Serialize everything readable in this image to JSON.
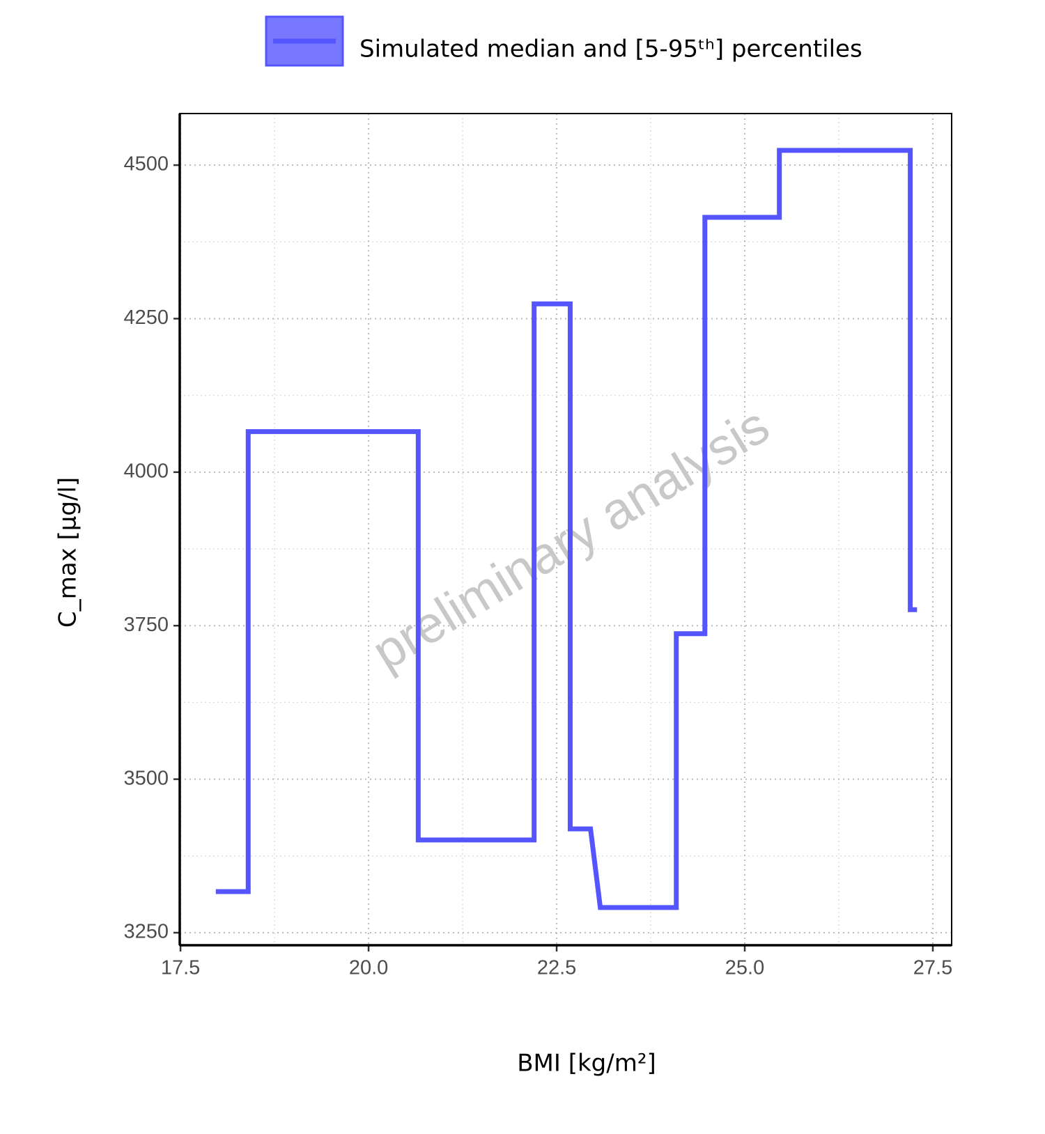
{
  "chart_data": {
    "type": "line",
    "x": [
      17.97,
      18.4,
      18.4,
      20.66,
      20.66,
      22.2,
      22.2,
      22.68,
      22.68,
      22.95,
      23.08,
      24.09,
      24.09,
      24.47,
      24.47,
      25.46,
      25.46,
      27.2,
      27.2,
      27.29
    ],
    "series": [
      {
        "name": "Simulated median and [5-95ᵗʰ] percentiles",
        "color": "#5555ff",
        "values": [
          3317,
          3317,
          4066,
          4066,
          3401,
          3401,
          4274,
          4274,
          3419,
          3419,
          3291,
          3291,
          3737,
          3737,
          4415,
          4415,
          4524,
          4524,
          3776,
          3776
        ]
      }
    ],
    "xlabel": "BMI [kg/m²]",
    "ylabel": "C_max [µg/l]",
    "annotation": "preliminary analysis",
    "xlim": [
      17.49,
      27.75
    ],
    "ylim": [
      3229.6,
      4584
    ],
    "xticks": [
      {
        "value": 17.5,
        "label": "17.5"
      },
      {
        "value": 20,
        "label": "20.0"
      },
      {
        "value": 22.5,
        "label": "22.5"
      },
      {
        "value": 25,
        "label": "25.0"
      },
      {
        "value": 27.5,
        "label": "27.5"
      }
    ],
    "yticks": [
      3250,
      3500,
      3750,
      4000,
      4250,
      4500
    ],
    "grid": true,
    "legend": "top"
  }
}
